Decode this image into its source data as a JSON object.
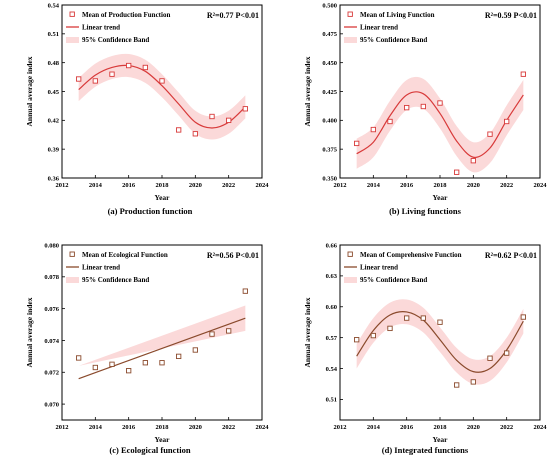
{
  "chart_data": [
    {
      "type": "scatter",
      "caption": "(a) Production function",
      "xlabel": "Year",
      "ylabel": "Annual average index",
      "xlim": [
        2012,
        2024
      ],
      "xticks": [
        2012,
        2014,
        2016,
        2018,
        2020,
        2022,
        2024
      ],
      "ylim": [
        0.36,
        0.54
      ],
      "yticks": [
        "0.36",
        "0.39",
        "0.42",
        "0.45",
        "0.48",
        "0.51",
        "0.54"
      ],
      "stats": "R²=0.77  P<0.01",
      "legend": [
        "Mean of Production Function",
        "Linear trend",
        "95% Confidence Band"
      ],
      "color": "#d83a3a",
      "band_color": "#fbd9d9",
      "points": {
        "x": [
          2013,
          2014,
          2015,
          2016,
          2017,
          2018,
          2019,
          2020,
          2021,
          2022,
          2023
        ],
        "y": [
          0.463,
          0.461,
          0.468,
          0.477,
          0.475,
          0.461,
          0.41,
          0.406,
          0.424,
          0.42,
          0.432
        ]
      },
      "trend": {
        "x": [
          2013,
          2014,
          2015,
          2016,
          2017,
          2018,
          2019,
          2020,
          2021,
          2022,
          2023
        ],
        "y": [
          0.452,
          0.467,
          0.475,
          0.477,
          0.471,
          0.456,
          0.437,
          0.418,
          0.412,
          0.418,
          0.434
        ]
      },
      "band_halfwidth": 0.012
    },
    {
      "type": "scatter",
      "caption": "(b) Living functions",
      "xlabel": "Year",
      "ylabel": "Annual average index",
      "xlim": [
        2012,
        2024
      ],
      "xticks": [
        2012,
        2014,
        2016,
        2018,
        2020,
        2022,
        2024
      ],
      "ylim": [
        0.35,
        0.5
      ],
      "yticks": [
        "0.350",
        "0.375",
        "0.400",
        "0.425",
        "0.450",
        "0.475",
        "0.500"
      ],
      "stats": "R²=0.59  P<0.01",
      "legend": [
        "Mean of Living Function",
        "Linear trend",
        "95% Confidence Band"
      ],
      "color": "#d83a3a",
      "band_color": "#fbd9d9",
      "points": {
        "x": [
          2013,
          2014,
          2015,
          2016,
          2017,
          2018,
          2019,
          2020,
          2021,
          2022,
          2023
        ],
        "y": [
          0.38,
          0.392,
          0.399,
          0.411,
          0.412,
          0.415,
          0.355,
          0.365,
          0.388,
          0.399,
          0.44
        ]
      },
      "trend": {
        "x": [
          2013,
          2014,
          2015,
          2016,
          2017,
          2018,
          2019,
          2020,
          2021,
          2022,
          2023
        ],
        "y": [
          0.371,
          0.381,
          0.404,
          0.422,
          0.423,
          0.406,
          0.382,
          0.368,
          0.376,
          0.4,
          0.422
        ]
      },
      "band_halfwidth": 0.013
    },
    {
      "type": "scatter",
      "caption": "(c) Ecological function",
      "xlabel": "Year",
      "ylabel": "Annual average index",
      "xlim": [
        2012,
        2024
      ],
      "xticks": [
        2012,
        2014,
        2016,
        2018,
        2020,
        2022,
        2024
      ],
      "ylim": [
        0.069,
        0.08
      ],
      "yticks": [
        "0.070",
        "0.072",
        "0.074",
        "0.076",
        "0.078",
        "0.080"
      ],
      "stats": "R²=0.56  P<0.01",
      "legend": [
        "Mean of Ecological Function",
        "Linear trend",
        "95% Confidence Band"
      ],
      "color": "#8a4a2c",
      "band_color": "#fbd9d9",
      "points": {
        "x": [
          2013,
          2014,
          2015,
          2016,
          2017,
          2018,
          2019,
          2020,
          2021,
          2022,
          2023
        ],
        "y": [
          0.0729,
          0.0723,
          0.0725,
          0.0721,
          0.0726,
          0.0726,
          0.073,
          0.0734,
          0.0744,
          0.0746,
          0.0771
        ]
      },
      "trend": {
        "x": [
          2013,
          2023
        ],
        "y": [
          0.0716,
          0.0754
        ]
      },
      "band_halfwidth": 0.0008
    },
    {
      "type": "scatter",
      "caption": "(d) Integrated functions",
      "xlabel": "Year",
      "ylabel": "Annual average index",
      "xlim": [
        2012,
        2024
      ],
      "xticks": [
        2012,
        2014,
        2016,
        2018,
        2020,
        2022,
        2024
      ],
      "ylim": [
        0.49,
        0.66
      ],
      "yticks": [
        "0.51",
        "0.54",
        "0.57",
        "0.60",
        "0.63",
        "0.66"
      ],
      "stats": "R²=0.62  P<0.01",
      "legend": [
        "Mean of Comprehensive Function",
        "Linear trend",
        "95% Confidence Band"
      ],
      "color": "#8a4a2c",
      "band_color": "#fbd9d9",
      "points": {
        "x": [
          2013,
          2014,
          2015,
          2016,
          2017,
          2018,
          2019,
          2020,
          2021,
          2022,
          2023
        ],
        "y": [
          0.568,
          0.572,
          0.579,
          0.589,
          0.589,
          0.585,
          0.524,
          0.527,
          0.55,
          0.555,
          0.59
        ]
      },
      "trend": {
        "x": [
          2013,
          2014,
          2015,
          2016,
          2017,
          2018,
          2019,
          2020,
          2021,
          2022,
          2023
        ],
        "y": [
          0.552,
          0.577,
          0.592,
          0.595,
          0.587,
          0.568,
          0.548,
          0.537,
          0.54,
          0.558,
          0.586
        ]
      },
      "band_halfwidth": 0.012
    }
  ]
}
